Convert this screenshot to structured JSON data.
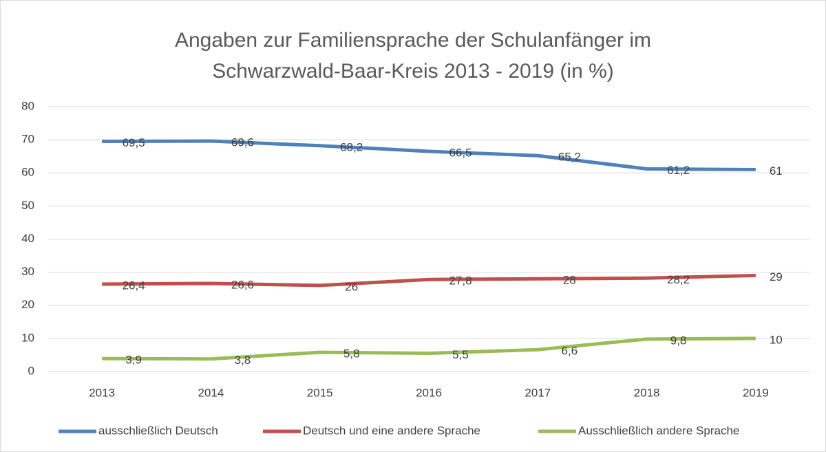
{
  "chart_data": {
    "type": "line",
    "title": [
      "Angaben zur Familiensprache der Schulanfänger im",
      "Schwarzwald-Baar-Kreis 2013 - 2019 (in %)"
    ],
    "categories": [
      "2013",
      "2014",
      "2015",
      "2016",
      "2017",
      "2018",
      "2019"
    ],
    "series": [
      {
        "name": "ausschließlich Deutsch",
        "color": "#4f81bd",
        "values": [
          69.5,
          69.6,
          68.2,
          66.5,
          65.2,
          61.2,
          61
        ],
        "value_labels": [
          "69,5",
          "69,6",
          "68,2",
          "66,5",
          "65,2",
          "61,2",
          "61"
        ]
      },
      {
        "name": "Deutsch und eine andere Sprache",
        "color": "#c0504d",
        "values": [
          26.4,
          26.6,
          26,
          27.8,
          28,
          28.2,
          29
        ],
        "value_labels": [
          "26,4",
          "26,6",
          "26",
          "27,8",
          "28",
          "28,2",
          "29"
        ]
      },
      {
        "name": "Ausschließlich andere Sprache",
        "color": "#9bbb59",
        "values": [
          3.9,
          3.8,
          5.8,
          5.5,
          6.6,
          9.8,
          10
        ],
        "value_labels": [
          "3,9",
          "3,8",
          "5,8",
          "5,5",
          "6,6",
          "9,8",
          "10"
        ]
      }
    ],
    "ylim": [
      0,
      80
    ],
    "yticks": [
      0,
      10,
      20,
      30,
      40,
      50,
      60,
      70,
      80
    ],
    "grid": true,
    "legend": "bottom"
  }
}
